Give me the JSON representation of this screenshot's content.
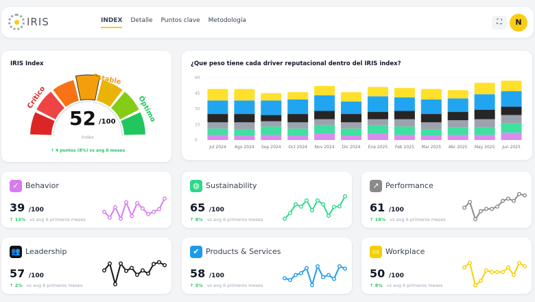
{
  "header": {
    "logo_text": "IRIS",
    "nav": [
      {
        "label": "INDEX",
        "active": true
      },
      {
        "label": "Detalle"
      },
      {
        "label": "Puntos clave"
      },
      {
        "label": "Metodología"
      }
    ],
    "fullscreen_icon": "compress-icon",
    "avatar": "N",
    "accent": "#facc15"
  },
  "gauge": {
    "title": "IRIS Index",
    "value": "52",
    "max": "/100",
    "sublabel": "Index",
    "labels": {
      "low": "Crítico",
      "mid": "Estable",
      "high": "Óptimo"
    },
    "change": "↑ 4 puntos (8%) vs avg 6 meses",
    "segment_colors": [
      "#dc2626",
      "#ef4444",
      "#f97316",
      "#f59e0b",
      "#eab308",
      "#84cc16",
      "#22c55e"
    ],
    "active_segment": 3
  },
  "chart_data": {
    "type": "bar",
    "stacked": true,
    "title": "¿Que peso tiene cada driver reputacional dentro del IRIS index?",
    "categories": [
      "Jul 2024",
      "Ago 2024",
      "Sep 2024",
      "Oct 2024",
      "Nov 2024",
      "Dic 2024",
      "Ene 2025",
      "Feb 2025",
      "Mar 2025",
      "Abr 2025",
      "May 2025",
      "Jun 2025"
    ],
    "ylim": [
      0,
      60
    ],
    "yticks": [
      "0",
      "15",
      "30",
      "45",
      "60"
    ],
    "grid": true,
    "series": [
      {
        "color": "#d98cf0",
        "values": [
          5,
          4,
          5,
          4,
          6,
          4,
          6,
          5,
          4,
          5,
          5,
          7
        ]
      },
      {
        "color": "#40e0a0",
        "values": [
          6,
          6,
          8,
          7,
          8,
          7,
          8,
          8,
          6,
          7,
          7,
          9
        ]
      },
      {
        "color": "#9ca3af",
        "values": [
          6,
          7,
          5,
          6,
          6,
          6,
          6,
          7,
          7,
          7,
          8,
          8
        ]
      },
      {
        "color": "#262626",
        "values": [
          8,
          8,
          6,
          8,
          8,
          8,
          7,
          8,
          8,
          8,
          9,
          8
        ]
      },
      {
        "color": "#22a5f0",
        "values": [
          13,
          13,
          14,
          14,
          15,
          12,
          15,
          13,
          14,
          13,
          15,
          15
        ]
      },
      {
        "color": "#ffe02a",
        "values": [
          11,
          11,
          7,
          7,
          9,
          9,
          9,
          9,
          10,
          8,
          11,
          10
        ]
      }
    ]
  },
  "drivers": [
    {
      "name": "Behavior",
      "score": "39",
      "max": "/100",
      "delta": "↑ 13%",
      "vs": "vs avg 6 primeros meses",
      "color": "#d77bf0",
      "icon": "check-icon",
      "glyph": "✓",
      "trend": [
        40,
        15,
        60,
        10,
        82,
        22,
        78,
        55,
        30,
        40,
        52,
        98
      ]
    },
    {
      "name": "Sustainability",
      "score": "65",
      "max": "/100",
      "delta": "↑ 8%",
      "vs": "vs avg 6 primeros meses",
      "color": "#2ed88a",
      "icon": "globe-icon",
      "glyph": "◍",
      "trend": [
        10,
        35,
        73,
        63,
        90,
        47,
        90,
        73,
        23,
        62,
        64,
        108
      ]
    },
    {
      "name": "Performance",
      "score": "61",
      "max": "/100",
      "delta": "↑ 18%",
      "vs": "vs avg 6 primeros meses",
      "color": "#8a8a8a",
      "icon": "trending-up-icon",
      "glyph": "↗",
      "trend": [
        58,
        83,
        8,
        43,
        53,
        53,
        63,
        88,
        98,
        88,
        118,
        112
      ]
    },
    {
      "name": "Leadership",
      "score": "57",
      "max": "/100",
      "delta": "↑ 2%",
      "vs": "vs avg 6 primeros meses",
      "color": "#111111",
      "icon": "users-icon",
      "glyph": "👥",
      "trend": [
        72,
        102,
        12,
        102,
        70,
        83,
        53,
        72,
        58,
        100,
        108,
        95
      ]
    },
    {
      "name": "Products & Services",
      "score": "58",
      "max": "/100",
      "delta": "↑ 5%",
      "vs": "vs avg 6 primeros meses",
      "color": "#1e9be8",
      "icon": "badge-check-icon",
      "glyph": "✔",
      "trend": [
        38,
        30,
        52,
        60,
        82,
        8,
        90,
        43,
        52,
        35,
        90,
        80
      ]
    },
    {
      "name": "Workplace",
      "score": "50",
      "max": "/100",
      "delta": "↑ 8%",
      "vs": "vs avg 6 primeros meses",
      "color": "#f5d000",
      "icon": "monitor-icon",
      "glyph": "▭",
      "trend": [
        85,
        105,
        7,
        27,
        72,
        65,
        65,
        65,
        85,
        52,
        105,
        90
      ]
    }
  ]
}
